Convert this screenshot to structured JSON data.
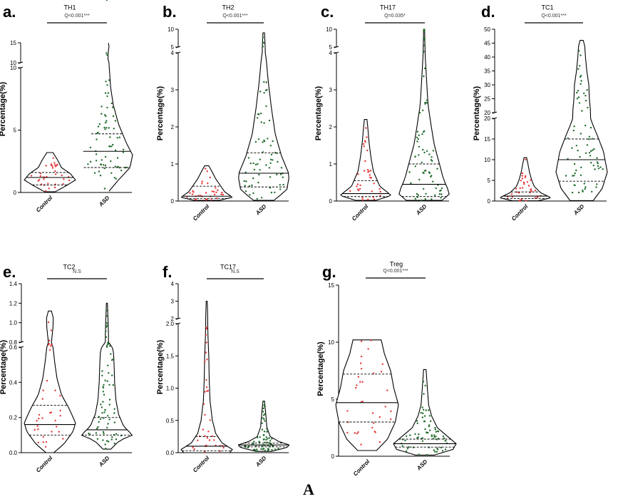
{
  "caption": "A",
  "chart_data": [
    {
      "type": "violin",
      "panel_label": "a.",
      "title": "TH1",
      "significance": "Q<0.001***",
      "ylabel": "Percentage(%)",
      "categories": [
        "Control",
        "ASD"
      ],
      "ylim": [
        0,
        16
      ],
      "axis_break": [
        10,
        10.8
      ],
      "yticks": [
        "0",
        "5",
        "10",
        "10",
        "15"
      ],
      "series": [
        {
          "name": "Control",
          "color": "#e8373a",
          "min": 0.05,
          "q1": 0.6,
          "median": 1.2,
          "q3": 1.6,
          "max": 3.2,
          "profile": [
            [
              0.05,
              0.2
            ],
            [
              0.5,
              0.6
            ],
            [
              1.0,
              1.0
            ],
            [
              1.5,
              0.8
            ],
            [
              2.0,
              0.45
            ],
            [
              2.6,
              0.3
            ],
            [
              3.2,
              0.12
            ]
          ]
        },
        {
          "name": "ASD",
          "color": "#1f6b2a",
          "min": 0.1,
          "q1": 2.0,
          "median": 3.3,
          "q3": 4.7,
          "max": 16,
          "profile": [
            [
              0.1,
              0.08
            ],
            [
              1.0,
              0.45
            ],
            [
              2.0,
              0.9
            ],
            [
              3.0,
              1.0
            ],
            [
              4.0,
              0.75
            ],
            [
              5.5,
              0.45
            ],
            [
              7.0,
              0.25
            ],
            [
              8.5,
              0.14
            ],
            [
              9.8,
              0.1
            ],
            [
              10.8,
              0.04
            ],
            [
              12.5,
              0.05
            ],
            [
              14.0,
              0.08
            ],
            [
              16.0,
              0.04
            ]
          ]
        }
      ]
    },
    {
      "type": "violin",
      "panel_label": "b.",
      "title": "TH2",
      "significance": "Q<0.001***",
      "ylabel": "Percentage(%)",
      "categories": [
        "Control",
        "ASD"
      ],
      "ylim": [
        0,
        10
      ],
      "axis_break": [
        4,
        5
      ],
      "yticks": [
        "0",
        "1",
        "2",
        "3",
        "4",
        "5",
        "10"
      ],
      "series": [
        {
          "name": "Control",
          "color": "#e8373a",
          "min": 0.02,
          "q1": 0.07,
          "median": 0.13,
          "q3": 0.4,
          "max": 0.95,
          "profile": [
            [
              0.02,
              0.5
            ],
            [
              0.1,
              1.0
            ],
            [
              0.25,
              0.7
            ],
            [
              0.4,
              0.55
            ],
            [
              0.6,
              0.35
            ],
            [
              0.8,
              0.2
            ],
            [
              0.95,
              0.08
            ]
          ]
        },
        {
          "name": "ASD",
          "color": "#1f6b2a",
          "min": 0.02,
          "q1": 0.38,
          "median": 0.75,
          "q3": 1.3,
          "max": 9,
          "profile": [
            [
              0.02,
              0.4
            ],
            [
              0.3,
              0.9
            ],
            [
              0.7,
              1.0
            ],
            [
              1.2,
              0.7
            ],
            [
              1.8,
              0.45
            ],
            [
              2.5,
              0.3
            ],
            [
              3.2,
              0.18
            ],
            [
              3.8,
              0.1
            ],
            [
              4.0,
              0.06
            ],
            [
              6.0,
              0.05
            ],
            [
              9.0,
              0.03
            ]
          ]
        }
      ]
    },
    {
      "type": "violin",
      "panel_label": "c.",
      "title": "TH17",
      "significance": "Q=0.035*",
      "ylabel": "Percentage(%)",
      "categories": [
        "Control",
        "ASD"
      ],
      "ylim": [
        0,
        10
      ],
      "axis_break": [
        4,
        5
      ],
      "yticks": [
        "0",
        "1",
        "2",
        "3",
        "4",
        "5",
        "10"
      ],
      "series": [
        {
          "name": "Control",
          "color": "#e8373a",
          "min": 0.02,
          "q1": 0.12,
          "median": 0.2,
          "q3": 0.55,
          "max": 2.2,
          "profile": [
            [
              0.02,
              0.4
            ],
            [
              0.15,
              1.0
            ],
            [
              0.4,
              0.55
            ],
            [
              0.8,
              0.3
            ],
            [
              1.2,
              0.2
            ],
            [
              1.6,
              0.13
            ],
            [
              2.0,
              0.08
            ],
            [
              2.2,
              0.05
            ]
          ]
        },
        {
          "name": "ASD",
          "color": "#1f6b2a",
          "min": 0.02,
          "q1": 0.12,
          "median": 0.45,
          "q3": 1.0,
          "max": 10,
          "profile": [
            [
              0.02,
              0.7
            ],
            [
              0.2,
              1.0
            ],
            [
              0.6,
              0.75
            ],
            [
              1.0,
              0.6
            ],
            [
              1.5,
              0.4
            ],
            [
              2.0,
              0.28
            ],
            [
              2.6,
              0.15
            ],
            [
              3.2,
              0.1
            ],
            [
              3.8,
              0.05
            ],
            [
              4.0,
              0.04
            ],
            [
              6.0,
              0.03
            ],
            [
              10.0,
              0.02
            ]
          ]
        }
      ]
    },
    {
      "type": "violin",
      "panel_label": "d.",
      "title": "TC1",
      "significance": "Q<0.001***",
      "ylabel": "Percentage(%)",
      "categories": [
        "Control",
        "ASD"
      ],
      "ylim": [
        0,
        50
      ],
      "axis_break": [
        20,
        20
      ],
      "yticks": [
        "0",
        "5",
        "10",
        "15",
        "20",
        "20",
        "25",
        "30",
        "35",
        "40",
        "45",
        "50"
      ],
      "series": [
        {
          "name": "Control",
          "color": "#e8373a",
          "min": 0.05,
          "q1": 0.6,
          "median": 1.2,
          "q3": 2.2,
          "max": 10.5,
          "profile": [
            [
              0.05,
              0.5
            ],
            [
              0.8,
              1.0
            ],
            [
              2.0,
              0.6
            ],
            [
              3.5,
              0.35
            ],
            [
              5.0,
              0.25
            ],
            [
              7.0,
              0.16
            ],
            [
              9.0,
              0.1
            ],
            [
              10.5,
              0.05
            ]
          ]
        },
        {
          "name": "ASD",
          "color": "#1f6b2a",
          "min": 0.1,
          "q1": 4.8,
          "median": 10.0,
          "q3": 15.0,
          "max": 46,
          "profile": [
            [
              0.1,
              0.45
            ],
            [
              3.0,
              0.8
            ],
            [
              7.0,
              1.0
            ],
            [
              12.0,
              0.85
            ],
            [
              16.0,
              0.6
            ],
            [
              19.0,
              0.4
            ],
            [
              20.0,
              0.35
            ],
            [
              25.0,
              0.3
            ],
            [
              30.0,
              0.28
            ],
            [
              35.0,
              0.2
            ],
            [
              40.0,
              0.15
            ],
            [
              44.0,
              0.12
            ],
            [
              46.0,
              0.06
            ]
          ]
        }
      ]
    },
    {
      "type": "violin",
      "panel_label": "e.",
      "title": "TC2",
      "significance": "N.S",
      "ylabel": "Percentage(%)",
      "categories": [
        "Control",
        "ASD"
      ],
      "ylim": [
        0,
        1.4
      ],
      "axis_break": [
        0.6,
        0.8
      ],
      "yticks": [
        "0.0",
        "0.2",
        "0.4",
        "0.6",
        "0.8",
        "1.0",
        "1.2",
        "1.4"
      ],
      "series": [
        {
          "name": "Control",
          "color": "#e8373a",
          "min": 0.0,
          "q1": 0.1,
          "median": 0.16,
          "q3": 0.27,
          "max": 1.12,
          "profile": [
            [
              0.0,
              0.15
            ],
            [
              0.05,
              0.55
            ],
            [
              0.12,
              0.9
            ],
            [
              0.17,
              1.0
            ],
            [
              0.25,
              0.75
            ],
            [
              0.33,
              0.45
            ],
            [
              0.42,
              0.28
            ],
            [
              0.5,
              0.2
            ],
            [
              0.6,
              0.12
            ],
            [
              0.8,
              0.06
            ],
            [
              0.95,
              0.12
            ],
            [
              1.05,
              0.13
            ],
            [
              1.12,
              0.06
            ]
          ]
        },
        {
          "name": "ASD",
          "color": "#1f6b2a",
          "min": 0.02,
          "q1": 0.1,
          "median": 0.13,
          "q3": 0.2,
          "max": 1.2,
          "profile": [
            [
              0.02,
              0.15
            ],
            [
              0.07,
              0.5
            ],
            [
              0.1,
              1.0
            ],
            [
              0.15,
              0.65
            ],
            [
              0.22,
              0.45
            ],
            [
              0.3,
              0.35
            ],
            [
              0.4,
              0.3
            ],
            [
              0.5,
              0.28
            ],
            [
              0.58,
              0.25
            ],
            [
              0.6,
              0.2
            ],
            [
              0.8,
              0.06
            ],
            [
              0.9,
              0.06
            ],
            [
              1.2,
              0.02
            ]
          ]
        }
      ]
    },
    {
      "type": "violin",
      "panel_label": "f.",
      "title": "TC17",
      "significance": "N.S",
      "ylabel": "Percentage(%)",
      "categories": [
        "Control",
        "ASD"
      ],
      "ylim": [
        0,
        4
      ],
      "axis_break": [
        2,
        2
      ],
      "yticks": [
        "0.0",
        "0.5",
        "1.0",
        "1.5",
        "2.0",
        "2",
        "3",
        "4"
      ],
      "series": [
        {
          "name": "Control",
          "color": "#e8373a",
          "min": 0.0,
          "q1": 0.03,
          "median": 0.1,
          "q3": 0.25,
          "max": 3.0,
          "profile": [
            [
              0.0,
              0.9
            ],
            [
              0.05,
              1.0
            ],
            [
              0.15,
              0.6
            ],
            [
              0.3,
              0.35
            ],
            [
              0.5,
              0.22
            ],
            [
              0.8,
              0.13
            ],
            [
              1.1,
              0.1
            ],
            [
              1.5,
              0.08
            ],
            [
              1.8,
              0.05
            ],
            [
              2.0,
              0.04
            ],
            [
              3.0,
              0.02
            ]
          ]
        },
        {
          "name": "ASD",
          "color": "#1f6b2a",
          "min": 0.02,
          "q1": 0.09,
          "median": 0.12,
          "q3": 0.15,
          "max": 0.8,
          "profile": [
            [
              0.02,
              0.3
            ],
            [
              0.08,
              0.9
            ],
            [
              0.12,
              1.0
            ],
            [
              0.17,
              0.6
            ],
            [
              0.25,
              0.25
            ],
            [
              0.4,
              0.12
            ],
            [
              0.6,
              0.08
            ],
            [
              0.8,
              0.03
            ]
          ]
        }
      ]
    },
    {
      "type": "violin",
      "panel_label": "g.",
      "title": "Treg",
      "significance": "Q<0.001***",
      "ylabel": "Percentage(%)",
      "categories": [
        "Control",
        "ASD"
      ],
      "ylim": [
        0,
        15
      ],
      "axis_break": null,
      "yticks": [
        "0",
        "5",
        "10",
        "15"
      ],
      "series": [
        {
          "name": "Control",
          "color": "#e8373a",
          "min": 0.5,
          "q1": 3.0,
          "median": 4.7,
          "q3": 7.2,
          "max": 10.2,
          "profile": [
            [
              0.5,
              0.3
            ],
            [
              1.5,
              0.65
            ],
            [
              3.0,
              0.9
            ],
            [
              4.5,
              1.0
            ],
            [
              6.0,
              0.85
            ],
            [
              7.5,
              0.75
            ],
            [
              9.0,
              0.55
            ],
            [
              10.2,
              0.45
            ]
          ]
        },
        {
          "name": "ASD",
          "color": "#1f6b2a",
          "min": 0.1,
          "q1": 0.8,
          "median": 1.1,
          "q3": 1.5,
          "max": 7.6,
          "profile": [
            [
              0.1,
              0.3
            ],
            [
              0.6,
              0.9
            ],
            [
              1.1,
              1.0
            ],
            [
              1.8,
              0.7
            ],
            [
              2.5,
              0.4
            ],
            [
              3.5,
              0.22
            ],
            [
              4.5,
              0.12
            ],
            [
              6.0,
              0.08
            ],
            [
              7.6,
              0.04
            ]
          ]
        }
      ]
    }
  ]
}
